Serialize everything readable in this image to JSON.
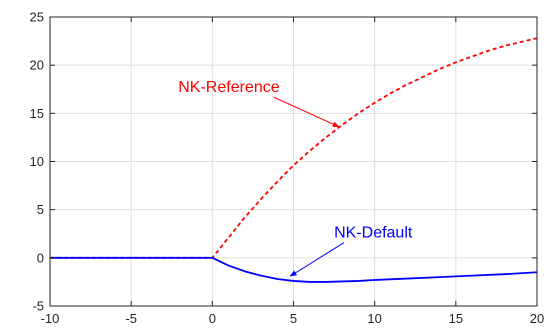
{
  "chart_data": {
    "type": "line",
    "title": "",
    "xlabel": "",
    "ylabel": "",
    "xlim": [
      -10,
      20
    ],
    "ylim": [
      -5,
      25
    ],
    "xticks": [
      -10,
      -5,
      0,
      5,
      10,
      15,
      20
    ],
    "yticks": [
      -5,
      0,
      5,
      10,
      15,
      20,
      25
    ],
    "grid": true,
    "legend": "none",
    "series": [
      {
        "name": "NK-Reference",
        "color": "#ff0000",
        "style": "dashed",
        "x": [
          -10,
          -5,
          0,
          1,
          2,
          3,
          4,
          5,
          6,
          7,
          8,
          9,
          10,
          11,
          12,
          13,
          14,
          15,
          16,
          17,
          18,
          19,
          20
        ],
        "y": [
          0,
          0,
          0,
          2.1,
          4.2,
          6.1,
          7.9,
          9.6,
          11.1,
          12.5,
          13.8,
          15.0,
          16.1,
          17.1,
          18.0,
          18.8,
          19.6,
          20.3,
          20.9,
          21.5,
          22.0,
          22.4,
          22.8
        ]
      },
      {
        "name": "NK-Default",
        "color": "#0000ff",
        "style": "solid",
        "x": [
          -10,
          -5,
          0,
          1,
          2,
          3,
          4,
          5,
          6,
          7,
          8,
          9,
          10,
          12,
          14,
          16,
          18,
          20
        ],
        "y": [
          0,
          0,
          0,
          -0.8,
          -1.4,
          -1.85,
          -2.2,
          -2.4,
          -2.5,
          -2.5,
          -2.45,
          -2.4,
          -2.3,
          -2.15,
          -2.0,
          -1.85,
          -1.7,
          -1.5
        ]
      }
    ],
    "annotations": [
      {
        "text": "NK-Reference",
        "color": "#ff0000",
        "label_at": [
          -2.1,
          17.2
        ],
        "arrow_to": [
          7.8,
          13.6
        ]
      },
      {
        "text": "NK-Default",
        "color": "#0000ff",
        "label_at": [
          7.5,
          2.1
        ],
        "arrow_to": [
          4.8,
          -1.9
        ]
      }
    ]
  }
}
